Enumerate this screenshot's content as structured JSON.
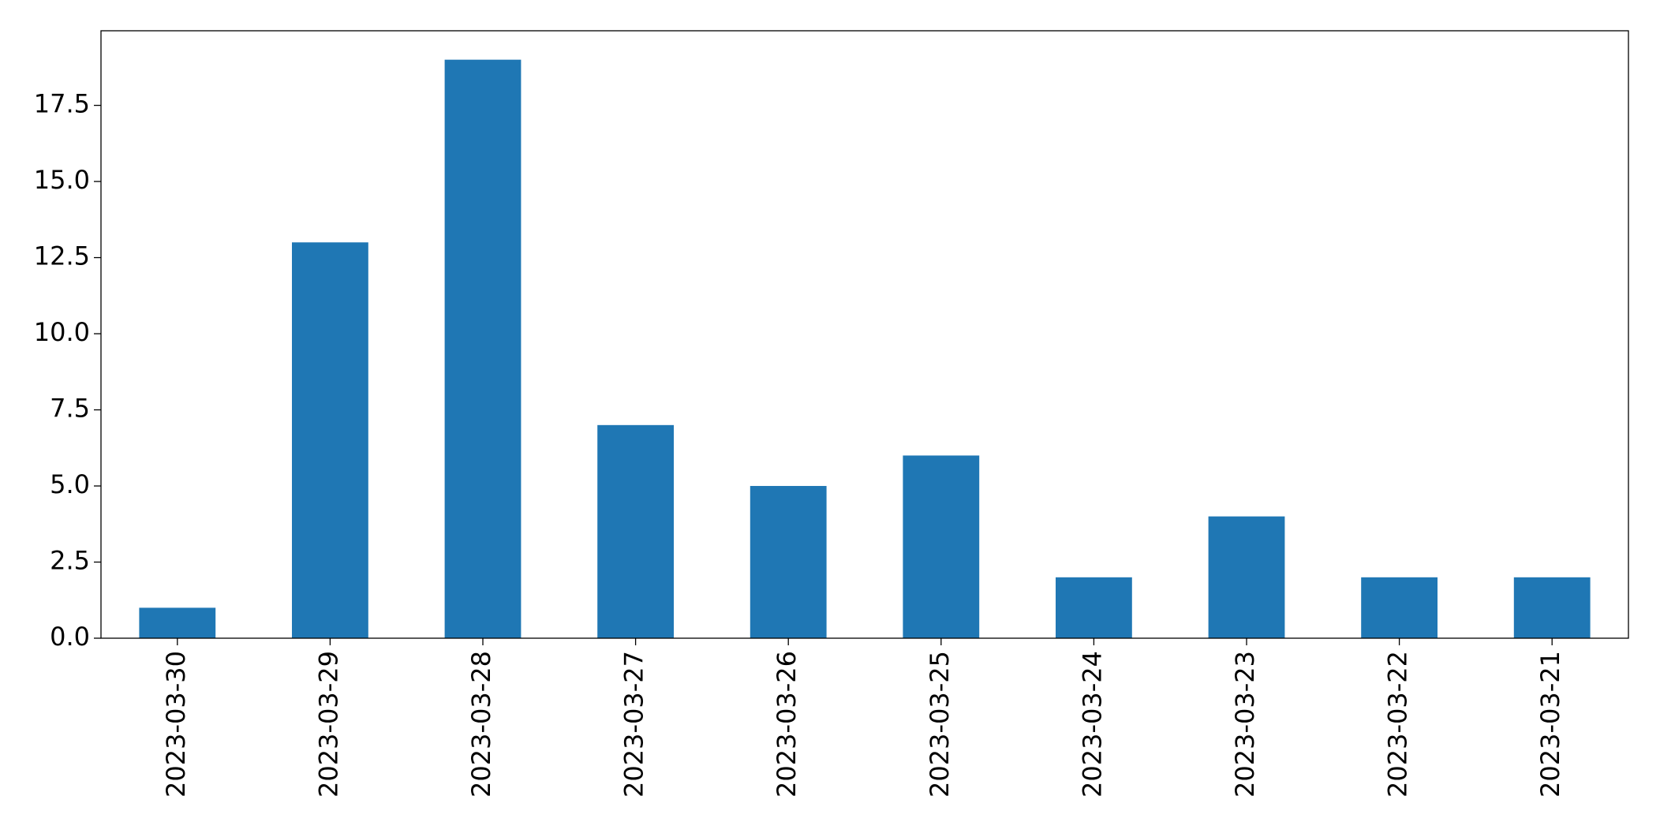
{
  "chart_data": {
    "type": "bar",
    "categories": [
      "2023-03-30",
      "2023-03-29",
      "2023-03-28",
      "2023-03-27",
      "2023-03-26",
      "2023-03-25",
      "2023-03-24",
      "2023-03-23",
      "2023-03-22",
      "2023-03-21"
    ],
    "values": [
      1,
      13,
      19,
      7,
      5,
      6,
      2,
      4,
      2,
      2
    ],
    "color": "#1f77b4",
    "ylim": [
      0,
      19.95
    ],
    "yticks": [
      {
        "value": 0,
        "label": "0.0"
      },
      2.5,
      {
        "value": 5,
        "label": "5.0"
      },
      7.5,
      {
        "value": 10,
        "label": "10.0"
      },
      12.5,
      {
        "value": 15,
        "label": "15.0"
      },
      17.5
    ],
    "grid": false
  }
}
